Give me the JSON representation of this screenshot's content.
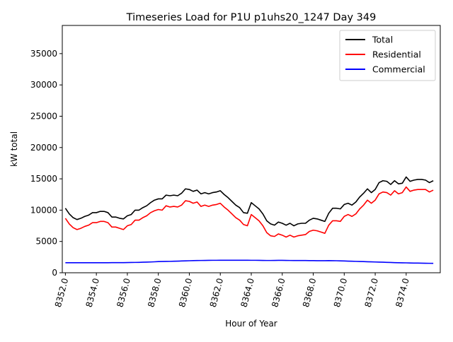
{
  "chart_data": {
    "type": "line",
    "title": "Timeseries Load for P1U p1uhs20_1247  Day 349",
    "xlabel": "Hour of Year",
    "ylabel": "kW total",
    "xlim": [
      8351.8,
      8376.2
    ],
    "ylim": [
      0,
      39500
    ],
    "x_ticks": [
      8352,
      8354,
      8356,
      8358,
      8360,
      8362,
      8364,
      8366,
      8368,
      8370,
      8372,
      8374
    ],
    "x_tick_labels": [
      "8352.0",
      "8354.0",
      "8356.0",
      "8358.0",
      "8360.0",
      "8362.0",
      "8364.0",
      "8366.0",
      "8368.0",
      "8370.0",
      "8372.0",
      "8374.0"
    ],
    "y_ticks": [
      0,
      5000,
      10000,
      15000,
      20000,
      25000,
      30000,
      35000
    ],
    "y_tick_labels": [
      "0",
      "5000",
      "10000",
      "15000",
      "20000",
      "25000",
      "30000",
      "35000"
    ],
    "x_start": 8352.0,
    "x_step": 0.25,
    "legend_position": "top-right",
    "grid": false,
    "series": [
      {
        "name": "Total",
        "color": "#000000",
        "values": [
          10300,
          9400,
          8800,
          8500,
          8700,
          9000,
          9200,
          9600,
          9600,
          9800,
          9800,
          9600,
          8900,
          8900,
          8700,
          8600,
          9100,
          9300,
          10000,
          10000,
          10400,
          10700,
          11200,
          11600,
          11800,
          11800,
          12400,
          12300,
          12400,
          12300,
          12700,
          13400,
          13300,
          13000,
          13200,
          12600,
          12800,
          12600,
          12800,
          12900,
          13100,
          12500,
          12000,
          11400,
          10800,
          10400,
          9600,
          9500,
          11200,
          10700,
          10200,
          9400,
          8300,
          7800,
          7600,
          8100,
          7900,
          7600,
          7900,
          7500,
          7800,
          7900,
          7900,
          8400,
          8700,
          8600,
          8400,
          8200,
          9500,
          10300,
          10300,
          10200,
          10900,
          11100,
          10800,
          11300,
          12100,
          12700,
          13400,
          12800,
          13300,
          14400,
          14700,
          14600,
          14100,
          14700,
          14200,
          14300,
          15300,
          14600,
          14800,
          14900,
          14900,
          14800,
          14400,
          14700
        ]
      },
      {
        "name": "Residential",
        "color": "#ff0000",
        "values": [
          8700,
          7800,
          7200,
          6900,
          7100,
          7400,
          7600,
          8000,
          8000,
          8200,
          8200,
          8000,
          7300,
          7300,
          7100,
          6900,
          7500,
          7700,
          8400,
          8400,
          8800,
          9100,
          9600,
          9900,
          10100,
          10000,
          10700,
          10500,
          10600,
          10500,
          10800,
          11500,
          11400,
          11100,
          11300,
          10600,
          10800,
          10600,
          10800,
          10900,
          11100,
          10500,
          10000,
          9400,
          8800,
          8400,
          7700,
          7500,
          9300,
          8800,
          8300,
          7500,
          6400,
          5900,
          5800,
          6200,
          6000,
          5700,
          6000,
          5700,
          5900,
          6000,
          6100,
          6600,
          6800,
          6700,
          6500,
          6300,
          7600,
          8300,
          8300,
          8200,
          9000,
          9300,
          9000,
          9400,
          10200,
          10800,
          11600,
          11100,
          11600,
          12600,
          12900,
          12800,
          12400,
          13100,
          12600,
          12800,
          13700,
          13000,
          13200,
          13300,
          13300,
          13300,
          12900,
          13200
        ]
      },
      {
        "name": "Commercial",
        "color": "#0000ff",
        "values": [
          1600,
          1600,
          1600,
          1600,
          1600,
          1600,
          1600,
          1600,
          1600,
          1600,
          1600,
          1600,
          1610,
          1610,
          1620,
          1620,
          1630,
          1640,
          1650,
          1660,
          1680,
          1700,
          1720,
          1750,
          1780,
          1800,
          1810,
          1820,
          1840,
          1860,
          1880,
          1900,
          1920,
          1940,
          1950,
          1960,
          1970,
          1980,
          1990,
          1990,
          2000,
          2000,
          2000,
          2000,
          2000,
          2000,
          2000,
          2000,
          1990,
          1990,
          1980,
          1970,
          1960,
          1960,
          1970,
          1980,
          1980,
          1970,
          1960,
          1950,
          1950,
          1950,
          1950,
          1940,
          1940,
          1930,
          1930,
          1930,
          1940,
          1930,
          1920,
          1900,
          1880,
          1860,
          1840,
          1820,
          1800,
          1780,
          1760,
          1740,
          1720,
          1700,
          1680,
          1660,
          1640,
          1620,
          1600,
          1590,
          1580,
          1560,
          1550,
          1540,
          1530,
          1520,
          1510,
          1500
        ]
      }
    ]
  }
}
